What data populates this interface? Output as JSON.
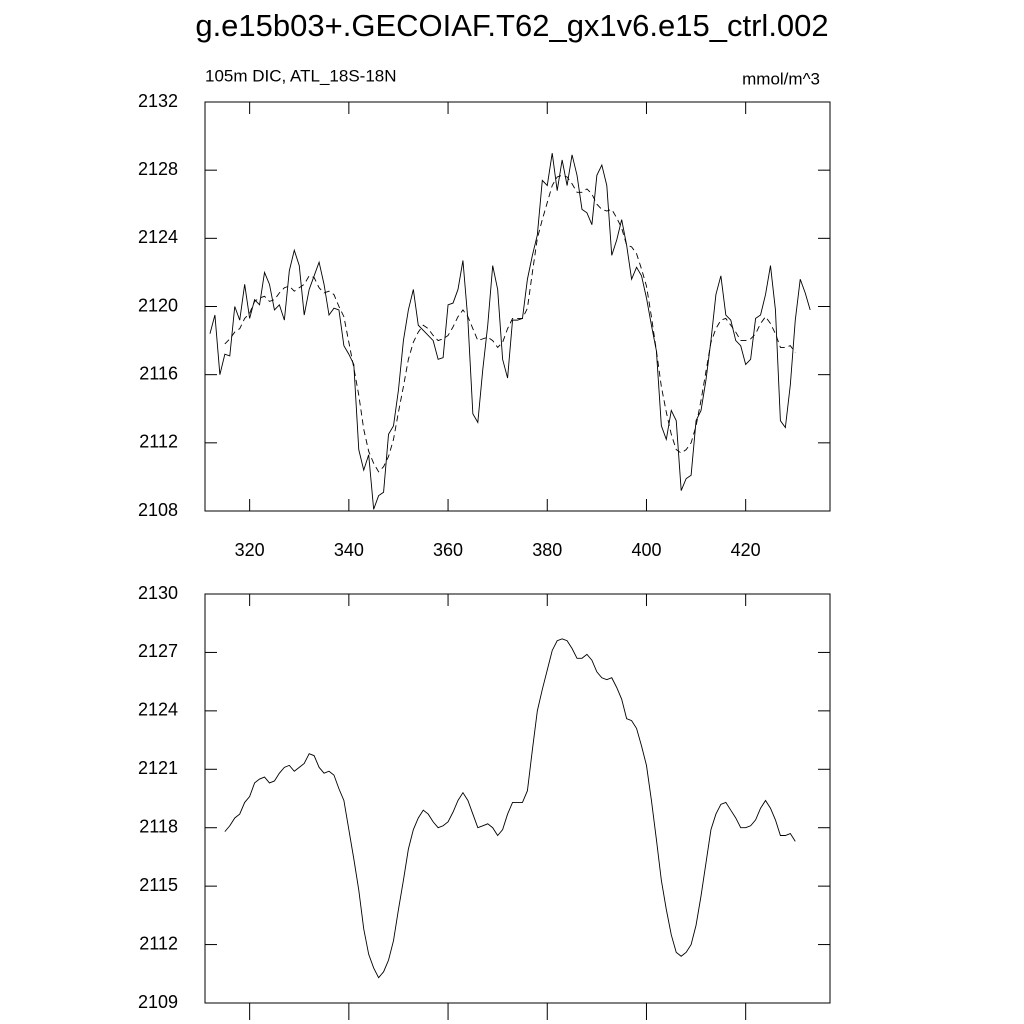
{
  "chart_data": [
    {
      "type": "line",
      "title": "g.e15b03+.GECOIAF.T62_gx1v6.e15_ctrl.002",
      "left_label": "105m DIC, ATL_18S-18N",
      "units": "mmol/m^3",
      "x": [
        312,
        313,
        314,
        315,
        316,
        317,
        318,
        319,
        320,
        321,
        322,
        323,
        324,
        325,
        326,
        327,
        328,
        329,
        330,
        331,
        332,
        333,
        334,
        335,
        336,
        337,
        338,
        339,
        340,
        341,
        342,
        343,
        344,
        345,
        346,
        347,
        348,
        349,
        350,
        351,
        352,
        353,
        354,
        355,
        356,
        357,
        358,
        359,
        360,
        361,
        362,
        363,
        364,
        365,
        366,
        367,
        368,
        369,
        370,
        371,
        372,
        373,
        374,
        375,
        376,
        377,
        378,
        379,
        380,
        381,
        382,
        383,
        384,
        385,
        386,
        387,
        388,
        389,
        390,
        391,
        392,
        393,
        394,
        395,
        396,
        397,
        398,
        399,
        400,
        401,
        402,
        403,
        404,
        405,
        406,
        407,
        408,
        409,
        410,
        411,
        412,
        413,
        414,
        415,
        416,
        417,
        418,
        419,
        420,
        421,
        422,
        423,
        424,
        425,
        426,
        427,
        428,
        429,
        430,
        431,
        432,
        433
      ],
      "series": [
        {
          "color": "#000000",
          "style": "solid",
          "values": [
            2118.4,
            2119.5,
            2116,
            2117.2,
            2117.1,
            2120,
            2119.2,
            2121.3,
            2119.3,
            2120.4,
            2120.1,
            2122,
            2121.3,
            2119.8,
            2120.1,
            2119.2,
            2122.1,
            2123.3,
            2122.4,
            2119.5,
            2121,
            2121.8,
            2122.6,
            2121.3,
            2119.5,
            2119.9,
            2119.8,
            2117.7,
            2117.2,
            2116.6,
            2111.6,
            2110.4,
            2111.3,
            2108.1,
            2108.9,
            2109.1,
            2112.5,
            2113,
            2115.1,
            2118,
            2119.8,
            2121,
            2118.9,
            2118.6,
            2118.3,
            2118,
            2116.9,
            2117,
            2120.1,
            2120.2,
            2121,
            2122.7,
            2119.2,
            2113.7,
            2113.2,
            2116.3,
            2118.9,
            2122.4,
            2121,
            2116.9,
            2115.8,
            2119.2,
            2119.2,
            2119.3,
            2121.6,
            2123,
            2124.2,
            2127.4,
            2127.1,
            2129,
            2126.8,
            2128.6,
            2127.1,
            2128.9,
            2127.7,
            2125.7,
            2125.5,
            2124.8,
            2127.7,
            2128.3,
            2127.1,
            2123,
            2123.9,
            2125.1,
            2123.6,
            2121.6,
            2122.3,
            2121.8,
            2120.5,
            2118.9,
            2117.4,
            2113,
            2112.2,
            2113.9,
            2113.3,
            2109.2,
            2109.9,
            2110.1,
            2113.3,
            2113.9,
            2115.7,
            2118,
            2120.7,
            2121.8,
            2119.5,
            2119.2,
            2118,
            2117.7,
            2116.6,
            2116.9,
            2119.3,
            2119.5,
            2120.7,
            2122.4,
            2119.8,
            2113.3,
            2112.9,
            2115.4,
            2119.2,
            2121.6,
            2120.8,
            2119.8
          ]
        },
        {
          "color": "#000000",
          "style": "dashed",
          "values": [
            null,
            null,
            null,
            2117.8,
            2118.1,
            2118.5,
            2118.7,
            2119.3,
            2119.6,
            2120.3,
            2120.5,
            2120.6,
            2120.3,
            2120.4,
            2120.8,
            2121.1,
            2121.2,
            2120.9,
            2121.1,
            2121.3,
            2121.8,
            2121.7,
            2121.1,
            2120.8,
            2120.9,
            2120.7,
            2120,
            2119.4,
            2117.9,
            2116.4,
            2114.8,
            2112.8,
            2111.5,
            2110.8,
            2110.3,
            2110.6,
            2111.2,
            2112.2,
            2113.8,
            2115.3,
            2116.9,
            2117.9,
            2118.5,
            2118.9,
            2118.7,
            2118.3,
            2118,
            2118.1,
            2118.3,
            2118.8,
            2119.4,
            2119.8,
            2119.4,
            2118.7,
            2118,
            2118.1,
            2118.2,
            2118,
            2117.6,
            2117.9,
            2118.7,
            2119.3,
            2119.3,
            2119.3,
            2119.9,
            2122,
            2124,
            2125.1,
            2126.1,
            2127.1,
            2127.6,
            2127.7,
            2127.6,
            2127.2,
            2126.7,
            2126.7,
            2126.9,
            2126.6,
            2126,
            2125.7,
            2125.6,
            2125.7,
            2125.2,
            2124.6,
            2123.6,
            2123.5,
            2123.1,
            2122.2,
            2121.2,
            2119.4,
            2117.4,
            2115.3,
            2113.8,
            2112.5,
            2111.6,
            2111.4,
            2111.6,
            2112,
            2113,
            2114.5,
            2116.2,
            2117.9,
            2118.7,
            2119.2,
            2119.3,
            2118.9,
            2118.5,
            2118,
            2118,
            2118.1,
            2118.4,
            2119,
            2119.4,
            2119,
            2118.4,
            2117.6,
            2117.6,
            2117.7,
            2117.3,
            null,
            null,
            null
          ]
        }
      ],
      "xlim": [
        311,
        437
      ],
      "xticks": [
        320,
        340,
        360,
        380,
        400,
        420
      ],
      "show_xtick_labels": true,
      "ylim": [
        2108,
        2132
      ],
      "yticks": [
        2108,
        2112,
        2116,
        2120,
        2124,
        2128,
        2132
      ]
    },
    {
      "type": "line",
      "x": [
        312,
        313,
        314,
        315,
        316,
        317,
        318,
        319,
        320,
        321,
        322,
        323,
        324,
        325,
        326,
        327,
        328,
        329,
        330,
        331,
        332,
        333,
        334,
        335,
        336,
        337,
        338,
        339,
        340,
        341,
        342,
        343,
        344,
        345,
        346,
        347,
        348,
        349,
        350,
        351,
        352,
        353,
        354,
        355,
        356,
        357,
        358,
        359,
        360,
        361,
        362,
        363,
        364,
        365,
        366,
        367,
        368,
        369,
        370,
        371,
        372,
        373,
        374,
        375,
        376,
        377,
        378,
        379,
        380,
        381,
        382,
        383,
        384,
        385,
        386,
        387,
        388,
        389,
        390,
        391,
        392,
        393,
        394,
        395,
        396,
        397,
        398,
        399,
        400,
        401,
        402,
        403,
        404,
        405,
        406,
        407,
        408,
        409,
        410,
        411,
        412,
        413,
        414,
        415,
        416,
        417,
        418,
        419,
        420,
        421,
        422,
        423,
        424,
        425,
        426,
        427,
        428,
        429,
        430,
        431,
        432,
        433
      ],
      "series": [
        {
          "color": "#000000",
          "style": "solid",
          "values": [
            null,
            null,
            null,
            2117.8,
            2118.1,
            2118.5,
            2118.7,
            2119.3,
            2119.6,
            2120.3,
            2120.5,
            2120.6,
            2120.3,
            2120.4,
            2120.8,
            2121.1,
            2121.2,
            2120.9,
            2121.1,
            2121.3,
            2121.8,
            2121.7,
            2121.1,
            2120.8,
            2120.9,
            2120.7,
            2120,
            2119.4,
            2117.9,
            2116.4,
            2114.8,
            2112.8,
            2111.5,
            2110.8,
            2110.3,
            2110.6,
            2111.2,
            2112.2,
            2113.8,
            2115.3,
            2116.9,
            2117.9,
            2118.5,
            2118.9,
            2118.7,
            2118.3,
            2118,
            2118.1,
            2118.3,
            2118.8,
            2119.4,
            2119.8,
            2119.4,
            2118.7,
            2118,
            2118.1,
            2118.2,
            2118,
            2117.6,
            2117.9,
            2118.7,
            2119.3,
            2119.3,
            2119.3,
            2119.9,
            2122,
            2124,
            2125.1,
            2126.1,
            2127.1,
            2127.6,
            2127.7,
            2127.6,
            2127.2,
            2126.7,
            2126.7,
            2126.9,
            2126.6,
            2126,
            2125.7,
            2125.6,
            2125.7,
            2125.2,
            2124.6,
            2123.6,
            2123.5,
            2123.1,
            2122.2,
            2121.2,
            2119.4,
            2117.4,
            2115.3,
            2113.8,
            2112.5,
            2111.6,
            2111.4,
            2111.6,
            2112,
            2113,
            2114.5,
            2116.2,
            2117.9,
            2118.7,
            2119.2,
            2119.3,
            2118.9,
            2118.5,
            2118,
            2118,
            2118.1,
            2118.4,
            2119,
            2119.4,
            2119,
            2118.4,
            2117.6,
            2117.6,
            2117.7,
            2117.3,
            null,
            null,
            null
          ]
        }
      ],
      "xlim": [
        311,
        437
      ],
      "xticks": [
        320,
        340,
        360,
        380,
        400,
        420
      ],
      "show_xtick_labels": false,
      "ylim": [
        2109,
        2130
      ],
      "yticks": [
        2109,
        2112,
        2115,
        2118,
        2121,
        2124,
        2127,
        2130
      ]
    }
  ]
}
